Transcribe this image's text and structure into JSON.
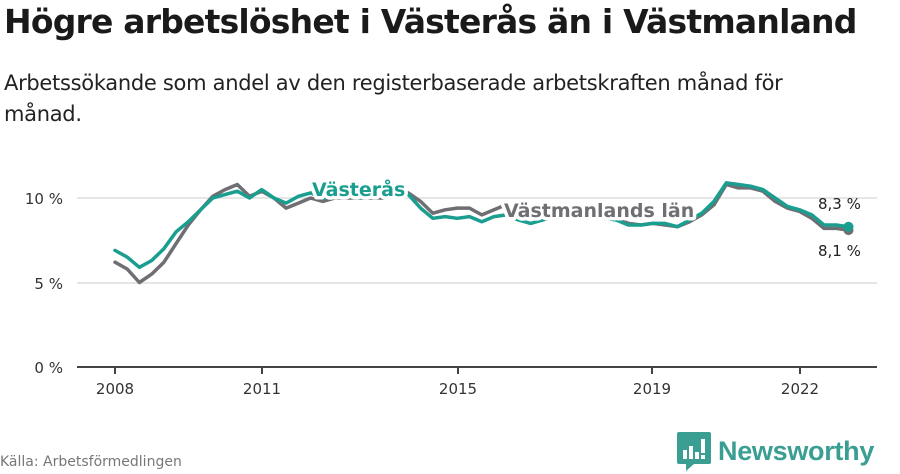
{
  "header": {
    "title": "Högre arbetslöshet i Västerås än i Västmanland",
    "subtitle": "Arbetssökande som andel av den registerbaserade arbetskraften månad för månad."
  },
  "footer": {
    "source": "Källa: Arbetsförmedlingen",
    "brand": "Newsworthy"
  },
  "colors": {
    "vasteras": "#1a9e8f",
    "vastmanland": "#6e6e73",
    "grid": "#dddddd",
    "axis": "#444444",
    "brand": "#3a9e92"
  },
  "chart_data": {
    "type": "line",
    "title": "Högre arbetslöshet i Västerås än i Västmanland",
    "subtitle": "Arbetssökande som andel av den registerbaserade arbetskraften månad för månad.",
    "xlabel": "",
    "ylabel": "",
    "x_ticks": [
      "2008",
      "2011",
      "2015",
      "2019",
      "2022"
    ],
    "y_ticks": [
      "0 %",
      "5 %",
      "10 %"
    ],
    "ylim": [
      0,
      11
    ],
    "xlim": [
      2007.8,
      2023.6
    ],
    "grid": true,
    "legend": "inline labels",
    "x": [
      2008.0,
      2008.25,
      2008.5,
      2008.75,
      2009.0,
      2009.25,
      2009.5,
      2009.75,
      2010.0,
      2010.25,
      2010.5,
      2010.75,
      2011.0,
      2011.25,
      2011.5,
      2011.75,
      2012.0,
      2012.25,
      2012.5,
      2012.75,
      2013.0,
      2013.25,
      2013.5,
      2013.75,
      2014.0,
      2014.25,
      2014.5,
      2014.75,
      2015.0,
      2015.25,
      2015.5,
      2015.75,
      2016.0,
      2016.25,
      2016.5,
      2016.75,
      2017.0,
      2017.25,
      2017.5,
      2017.75,
      2018.0,
      2018.25,
      2018.5,
      2018.75,
      2019.0,
      2019.25,
      2019.5,
      2019.75,
      2020.0,
      2020.25,
      2020.5,
      2020.75,
      2021.0,
      2021.25,
      2021.5,
      2021.75,
      2022.0,
      2022.25,
      2022.5,
      2022.75,
      2023.0
    ],
    "series": [
      {
        "name": "Västerås",
        "end_label": "8,3 %",
        "values": [
          6.9,
          6.5,
          5.9,
          6.3,
          7.0,
          8.0,
          8.6,
          9.3,
          10.0,
          10.2,
          10.4,
          10.0,
          10.5,
          10.0,
          9.7,
          10.1,
          10.3,
          10.0,
          10.1,
          10.2,
          10.0,
          10.2,
          10.1,
          10.3,
          10.2,
          9.4,
          8.8,
          8.9,
          8.8,
          8.9,
          8.6,
          8.9,
          9.0,
          8.7,
          8.5,
          8.7,
          8.9,
          8.9,
          8.8,
          8.9,
          8.8,
          8.7,
          8.4,
          8.4,
          8.5,
          8.5,
          8.3,
          8.7,
          9.1,
          9.8,
          10.9,
          10.8,
          10.7,
          10.5,
          10.0,
          9.5,
          9.3,
          9.0,
          8.4,
          8.4,
          8.3
        ]
      },
      {
        "name": "Västmanlands län",
        "end_label": "8,1 %",
        "values": [
          6.2,
          5.8,
          5.0,
          5.5,
          6.2,
          7.3,
          8.4,
          9.3,
          10.1,
          10.5,
          10.8,
          10.1,
          10.4,
          10.0,
          9.4,
          9.7,
          10.0,
          9.8,
          10.0,
          10.0,
          10.0,
          10.0,
          10.0,
          10.2,
          10.3,
          9.8,
          9.1,
          9.3,
          9.4,
          9.4,
          9.0,
          9.3,
          9.6,
          9.3,
          9.0,
          8.9,
          9.0,
          9.0,
          8.9,
          9.0,
          8.9,
          8.8,
          8.5,
          8.4,
          8.5,
          8.4,
          8.3,
          8.6,
          9.0,
          9.6,
          10.8,
          10.6,
          10.6,
          10.4,
          9.8,
          9.4,
          9.2,
          8.8,
          8.2,
          8.2,
          8.1
        ]
      }
    ]
  },
  "chart_labels": {
    "vasteras_inline": "Västerås",
    "vastmanland_inline": "Västmanlands län",
    "vasteras_end": "8,3 %",
    "vastmanland_end": "8,1 %",
    "y0": "0 %",
    "y5": "5 %",
    "y10": "10 %",
    "x2008": "2008",
    "x2011": "2011",
    "x2015": "2015",
    "x2019": "2019",
    "x2022": "2022"
  }
}
